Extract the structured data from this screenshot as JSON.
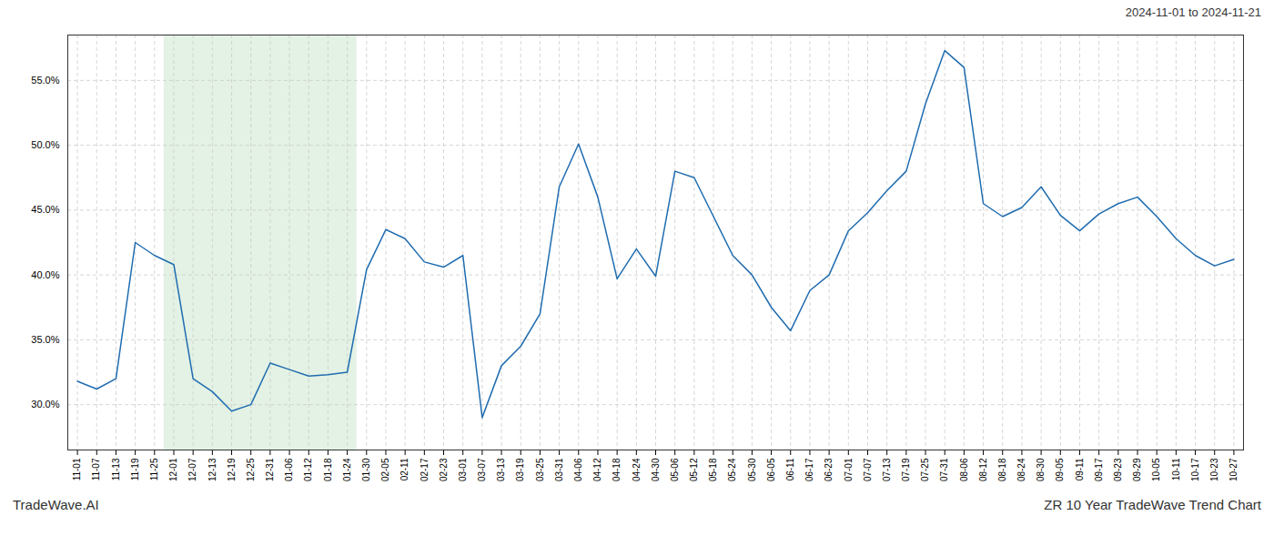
{
  "chart_data": {
    "type": "line",
    "title": "2024-11-01 to 2024-11-21",
    "annotations": [
      "TradeWave.AI",
      "ZR 10 Year TradeWave Trend Chart"
    ],
    "color": "#1f6cb0",
    "grid": true,
    "shade": {
      "from": "12-01",
      "to": "01-24",
      "color": "#c8e6c9"
    },
    "ylim": [
      0.265,
      0.585
    ],
    "yticks": [
      {
        "value": 0.3,
        "label": "30.0%"
      },
      {
        "value": 0.35,
        "label": "35.0%"
      },
      {
        "value": 0.4,
        "label": "40.0%"
      },
      {
        "value": 0.45,
        "label": "45.0%"
      },
      {
        "value": 0.5,
        "label": "50.0%"
      },
      {
        "value": 0.55,
        "label": "55.0%"
      }
    ],
    "categories": [
      "11-01",
      "11-07",
      "11-13",
      "11-19",
      "11-25",
      "12-01",
      "12-07",
      "12-13",
      "12-19",
      "12-25",
      "12-31",
      "01-06",
      "01-12",
      "01-18",
      "01-24",
      "01-30",
      "02-05",
      "02-11",
      "02-17",
      "02-23",
      "03-01",
      "03-07",
      "03-13",
      "03-19",
      "03-25",
      "03-31",
      "04-06",
      "04-12",
      "04-18",
      "04-24",
      "04-30",
      "05-06",
      "05-12",
      "05-18",
      "05-24",
      "05-30",
      "06-05",
      "06-11",
      "06-17",
      "06-23",
      "07-01",
      "07-07",
      "07-13",
      "07-19",
      "07-25",
      "07-31",
      "08-06",
      "08-12",
      "08-18",
      "08-24",
      "08-30",
      "09-05",
      "09-11",
      "09-17",
      "09-23",
      "09-29",
      "10-05",
      "10-11",
      "10-17",
      "10-23",
      "10-27"
    ],
    "values": [
      0.318,
      0.312,
      0.32,
      0.425,
      0.415,
      0.408,
      0.32,
      0.31,
      0.295,
      0.3,
      0.332,
      0.327,
      0.322,
      0.323,
      0.325,
      0.404,
      0.435,
      0.428,
      0.41,
      0.406,
      0.415,
      0.29,
      0.33,
      0.345,
      0.37,
      0.468,
      0.501,
      0.46,
      0.397,
      0.42,
      0.399,
      0.48,
      0.475,
      0.445,
      0.415,
      0.4,
      0.375,
      0.357,
      0.388,
      0.4,
      0.434,
      0.448,
      0.465,
      0.48,
      0.532,
      0.573,
      0.56,
      0.455,
      0.445,
      0.452,
      0.468,
      0.446,
      0.434,
      0.447,
      0.455,
      0.46,
      0.445,
      0.428,
      0.415,
      0.407,
      0.412
    ]
  }
}
